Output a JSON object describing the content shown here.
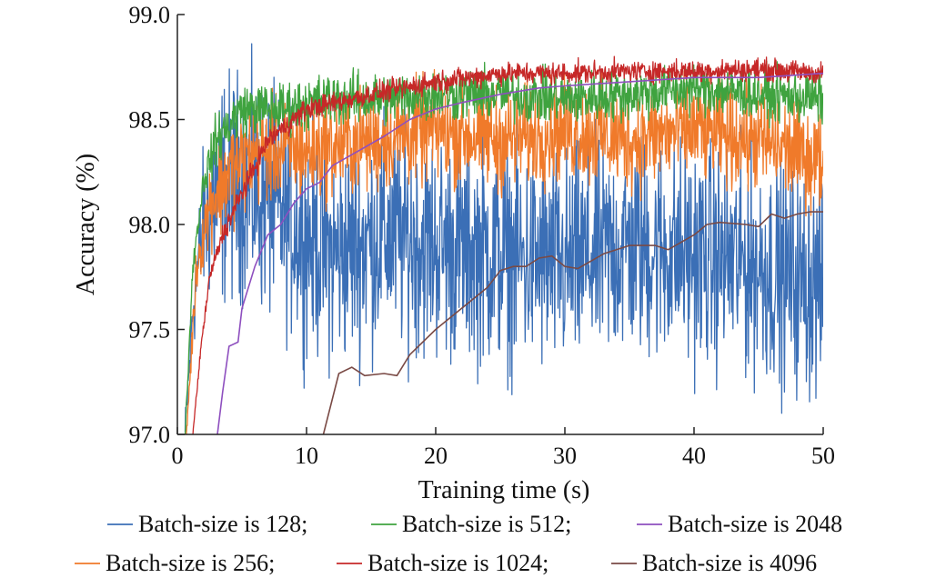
{
  "chart_data": {
    "type": "line",
    "title": "",
    "xlabel": "Training time (s)",
    "ylabel": "Accuracy (%)",
    "xlim": [
      0,
      50
    ],
    "ylim": [
      97.0,
      99.0
    ],
    "x_ticks": [
      "0",
      "10",
      "20",
      "30",
      "40",
      "50"
    ],
    "y_ticks": [
      "97.0",
      "97.5",
      "98.0",
      "98.5",
      "99.0"
    ],
    "grid": false,
    "legend_position": "bottom",
    "series": [
      {
        "name": "Batch-size is 128;",
        "color": "#3b6fb6",
        "noisy": true,
        "noise": 0.26,
        "points": [
          [
            0.6,
            97.0
          ],
          [
            1.2,
            97.6
          ],
          [
            2,
            98.0
          ],
          [
            3,
            98.15
          ],
          [
            5,
            98.2
          ],
          [
            8,
            98.05
          ],
          [
            12,
            97.85
          ],
          [
            16,
            97.95
          ],
          [
            20,
            97.9
          ],
          [
            25,
            97.85
          ],
          [
            30,
            97.8
          ],
          [
            35,
            97.9
          ],
          [
            40,
            97.85
          ],
          [
            45,
            97.8
          ],
          [
            50,
            97.7
          ]
        ]
      },
      {
        "name": "Batch-size is 256;",
        "color": "#f07a2a",
        "noisy": true,
        "noise": 0.12,
        "points": [
          [
            0.7,
            97.0
          ],
          [
            1.5,
            97.8
          ],
          [
            2.5,
            98.1
          ],
          [
            4,
            98.25
          ],
          [
            6,
            98.35
          ],
          [
            10,
            98.35
          ],
          [
            15,
            98.4
          ],
          [
            20,
            98.45
          ],
          [
            25,
            98.4
          ],
          [
            30,
            98.45
          ],
          [
            35,
            98.4
          ],
          [
            40,
            98.45
          ],
          [
            45,
            98.4
          ],
          [
            50,
            98.3
          ]
        ]
      },
      {
        "name": "Batch-size is 512;",
        "color": "#3fa33f",
        "noisy": true,
        "noise": 0.06,
        "points": [
          [
            0.6,
            97.0
          ],
          [
            1.2,
            97.8
          ],
          [
            2,
            98.2
          ],
          [
            3,
            98.4
          ],
          [
            5,
            98.55
          ],
          [
            8,
            98.55
          ],
          [
            12,
            98.6
          ],
          [
            16,
            98.6
          ],
          [
            20,
            98.62
          ],
          [
            25,
            98.62
          ],
          [
            30,
            98.6
          ],
          [
            35,
            98.62
          ],
          [
            40,
            98.65
          ],
          [
            45,
            98.62
          ],
          [
            50,
            98.6
          ]
        ]
      },
      {
        "name": "Batch-size is 1024;",
        "color": "#c62828",
        "noisy": true,
        "noise": 0.025,
        "points": [
          [
            1.2,
            97.0
          ],
          [
            1.8,
            97.4
          ],
          [
            2.5,
            97.75
          ],
          [
            3.5,
            97.95
          ],
          [
            5,
            98.15
          ],
          [
            7,
            98.4
          ],
          [
            10,
            98.55
          ],
          [
            15,
            98.62
          ],
          [
            20,
            98.68
          ],
          [
            25,
            98.72
          ],
          [
            30,
            98.72
          ],
          [
            35,
            98.73
          ],
          [
            40,
            98.73
          ],
          [
            45,
            98.74
          ],
          [
            50,
            98.72
          ]
        ]
      },
      {
        "name": "Batch-size is 2048",
        "color": "#8e4fbf",
        "noisy": false,
        "points": [
          [
            3.1,
            97.0
          ],
          [
            3.5,
            97.2
          ],
          [
            4,
            97.42
          ],
          [
            4.7,
            97.44
          ],
          [
            5,
            97.6
          ],
          [
            6,
            97.8
          ],
          [
            7,
            97.95
          ],
          [
            8,
            98.0
          ],
          [
            9,
            98.1
          ],
          [
            10,
            98.17
          ],
          [
            11,
            98.2
          ],
          [
            12,
            98.28
          ],
          [
            14,
            98.35
          ],
          [
            16,
            98.42
          ],
          [
            18,
            98.5
          ],
          [
            20,
            98.55
          ],
          [
            22,
            98.58
          ],
          [
            25,
            98.62
          ],
          [
            28,
            98.65
          ],
          [
            30,
            98.66
          ],
          [
            35,
            98.68
          ],
          [
            40,
            98.7
          ],
          [
            45,
            98.7
          ],
          [
            50,
            98.72
          ]
        ]
      },
      {
        "name": "Batch-size is 4096",
        "color": "#7a4a45",
        "noisy": false,
        "points": [
          [
            11.3,
            97.0
          ],
          [
            12.5,
            97.29
          ],
          [
            13.5,
            97.32
          ],
          [
            14.5,
            97.28
          ],
          [
            16,
            97.29
          ],
          [
            17,
            97.28
          ],
          [
            18,
            97.38
          ],
          [
            20,
            97.5
          ],
          [
            22,
            97.6
          ],
          [
            24,
            97.7
          ],
          [
            25,
            97.78
          ],
          [
            26,
            97.8
          ],
          [
            27,
            97.8
          ],
          [
            28,
            97.84
          ],
          [
            29,
            97.85
          ],
          [
            30,
            97.8
          ],
          [
            31,
            97.79
          ],
          [
            33,
            97.86
          ],
          [
            35,
            97.9
          ],
          [
            37,
            97.9
          ],
          [
            38,
            97.88
          ],
          [
            40,
            97.95
          ],
          [
            41,
            98.0
          ],
          [
            42,
            98.01
          ],
          [
            44,
            98.0
          ],
          [
            45,
            97.99
          ],
          [
            46,
            98.05
          ],
          [
            47,
            98.03
          ],
          [
            48,
            98.05
          ],
          [
            49,
            98.06
          ],
          [
            50,
            98.06
          ]
        ]
      }
    ]
  }
}
